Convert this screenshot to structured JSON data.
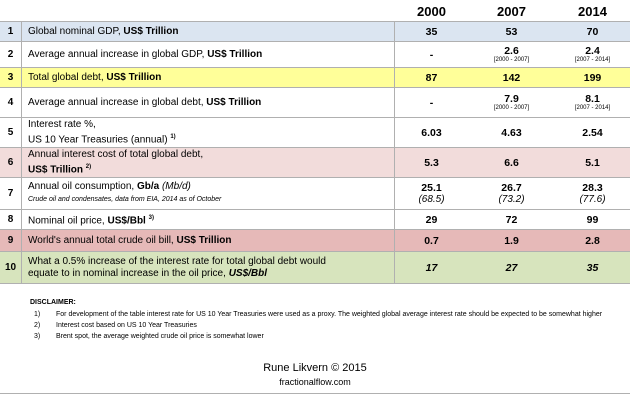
{
  "header": {
    "columns": [
      "2000",
      "2007",
      "2014"
    ]
  },
  "table": {
    "rows": [
      {
        "number": "1",
        "fill": "#dbe5f1",
        "lines": [
          [
            {
              "text": "Global nominal GDP, "
            },
            {
              "text": "US$ Trillion",
              "style": "bold"
            }
          ]
        ],
        "values": [
          {
            "main": "35"
          },
          {
            "main": "53"
          },
          {
            "main": "70"
          }
        ]
      },
      {
        "number": "2",
        "lines": [
          [
            {
              "text": "Average annual increase in global GDP, "
            },
            {
              "text": "US$ Trillion",
              "style": "bold"
            }
          ]
        ],
        "values": [
          {
            "main": "-"
          },
          {
            "main": "2.6",
            "sub": "[2000 - 2007]"
          },
          {
            "main": "2.4",
            "sub": "[2007 - 2014]"
          }
        ]
      },
      {
        "number": "3",
        "fill": "#ffff99",
        "lines": [
          [
            {
              "text": "Total global debt, "
            },
            {
              "text": "US$ Trillion",
              "style": "bold"
            }
          ]
        ],
        "values": [
          {
            "main": "87"
          },
          {
            "main": "142"
          },
          {
            "main": "199"
          }
        ]
      },
      {
        "number": "4",
        "lines": [
          [
            {
              "text": "Average annual increase in global debt, "
            },
            {
              "text": "US$ Trillion",
              "style": "bold"
            }
          ]
        ],
        "values": [
          {
            "main": "-"
          },
          {
            "main": "7.9",
            "sub": "[2000 - 2007]"
          },
          {
            "main": "8.1",
            "sub": "[2007 - 2014]"
          }
        ]
      },
      {
        "number": "5",
        "lines": [
          [
            {
              "text": "Interest rate %,"
            }
          ],
          [
            {
              "text": "US 10 Year Treasuries (annual) "
            },
            {
              "text": "1)",
              "style": "sup"
            }
          ]
        ],
        "values": [
          {
            "main": "6.03"
          },
          {
            "main": "4.63"
          },
          {
            "main": "2.54"
          }
        ]
      },
      {
        "number": "6",
        "fill": "#f2dcdb",
        "lines": [
          [
            {
              "text": "Annual interest cost of total global debt,"
            }
          ],
          [
            {
              "text": "US$ Trillion ",
              "style": "bold"
            },
            {
              "text": "2)",
              "style": "sup"
            }
          ]
        ],
        "values": [
          {
            "main": "5.3"
          },
          {
            "main": "6.6"
          },
          {
            "main": "5.1"
          }
        ]
      },
      {
        "number": "7",
        "lines": [
          [
            {
              "text": "Annual oil consumption, "
            },
            {
              "text": "Gb/a",
              "style": "bold"
            },
            {
              "text": "  (Mb/d)",
              "style": "italic"
            }
          ],
          [
            {
              "text": "Crude oil and condensates, data from EIA, 2014 as of October",
              "style": "small-italic"
            }
          ]
        ],
        "values": [
          {
            "main": "25.1",
            "sub": "(68.5)"
          },
          {
            "main": "26.7",
            "sub": "(73.2)"
          },
          {
            "main": "28.3",
            "sub": "(77.6)"
          }
        ],
        "sub_style": "italic"
      },
      {
        "number": "8",
        "lines": [
          [
            {
              "text": "Nominal oil price, "
            },
            {
              "text": "US$/Bbl ",
              "style": "bold"
            },
            {
              "text": "3)",
              "style": "sup"
            }
          ]
        ],
        "values": [
          {
            "main": "29"
          },
          {
            "main": "72"
          },
          {
            "main": "99"
          }
        ]
      },
      {
        "number": "9",
        "fill": "#e6b9b8",
        "lines": [
          [
            {
              "text": "World's annual total crude oil bill, "
            },
            {
              "text": "US$ Trillion",
              "style": "bold"
            }
          ]
        ],
        "values": [
          {
            "main": "0.7"
          },
          {
            "main": "1.9"
          },
          {
            "main": "2.8"
          }
        ]
      },
      {
        "number": "10",
        "fill": "#d7e4bd",
        "lines": [
          [
            {
              "text": "What a 0.5% increase of the interest rate for total global debt would"
            }
          ],
          [
            {
              "text": "equate to in nominal increase in the oil price, "
            },
            {
              "text": "US$/Bbl",
              "style": "bolditalic"
            }
          ]
        ],
        "values": [
          {
            "main": "17"
          },
          {
            "main": "27"
          },
          {
            "main": "35"
          }
        ],
        "value_style": "italic"
      }
    ]
  },
  "disclaimer": {
    "title": "DISCLAIMER:",
    "items": [
      {
        "marker": "1)",
        "text": "For development of the table interest rate for US 10 Year Treasuries were used as a proxy. The weighted global average interest rate should be expected to be somewhat higher"
      },
      {
        "marker": "2)",
        "text": "Interest cost based on US 10 Year Treasuries"
      },
      {
        "marker": "3)",
        "text": "Brent spot, the average weighted crude oil price is somewhat lower"
      }
    ]
  },
  "footer": {
    "author": "Rune Likvern © 2015",
    "site": "fractionalflow.com"
  }
}
